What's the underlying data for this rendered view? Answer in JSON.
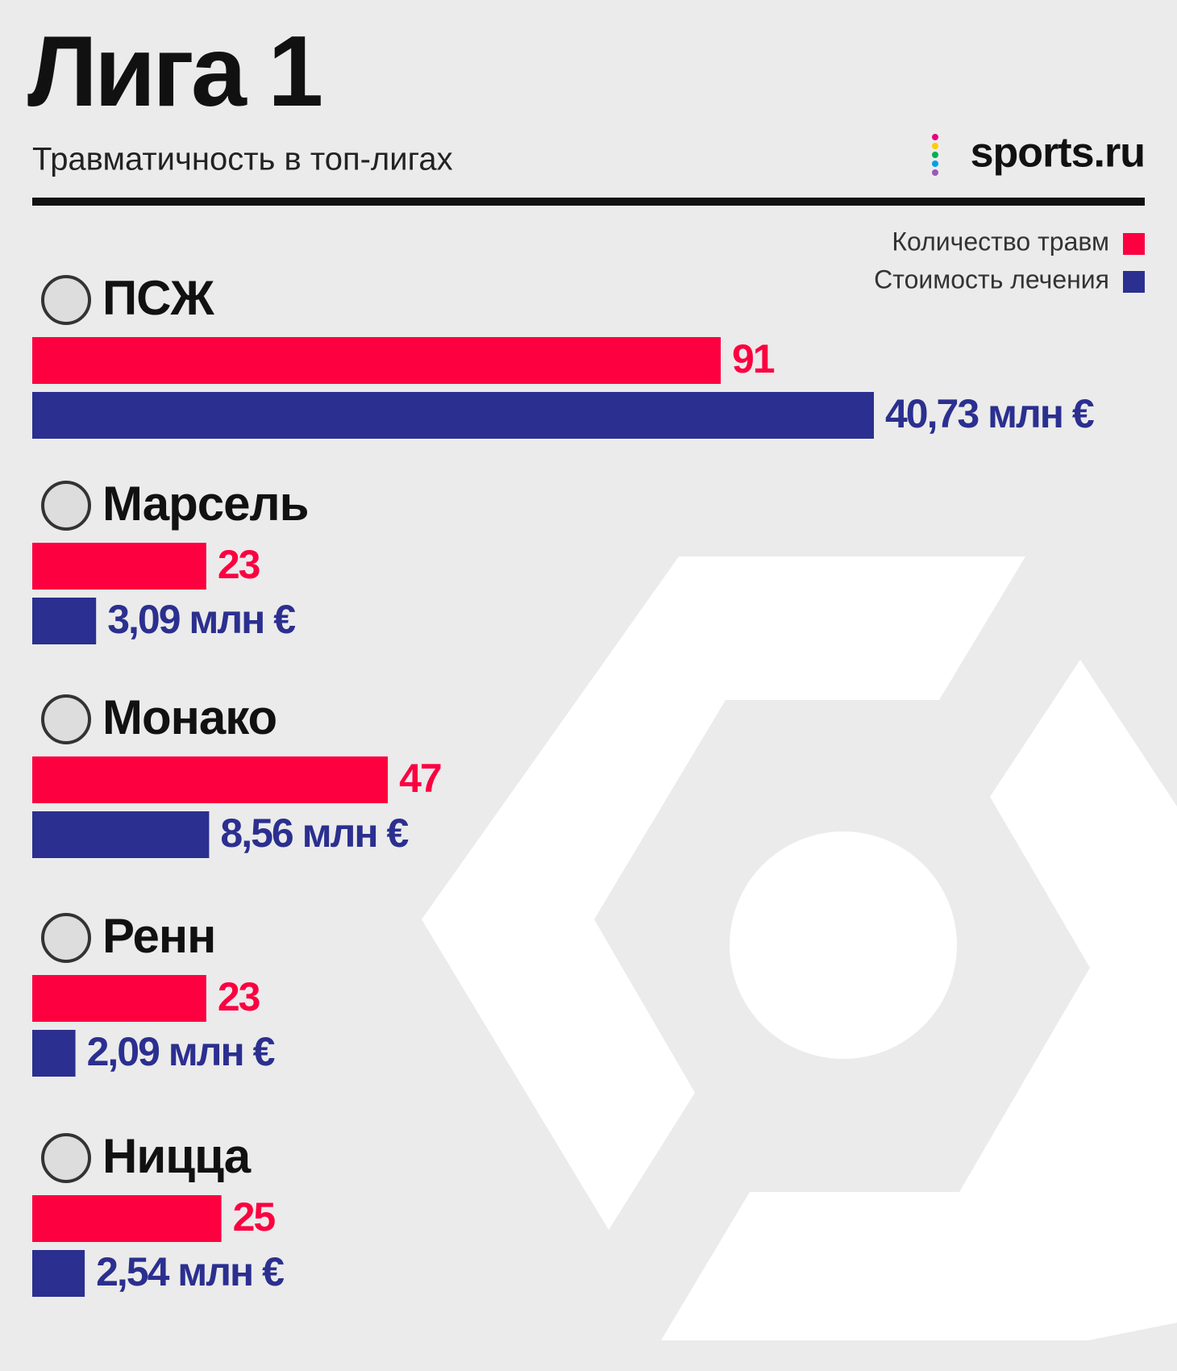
{
  "chart_data": {
    "type": "bar",
    "orientation": "horizontal",
    "title": "Лига 1",
    "subtitle": "Травматичность в топ-лигах",
    "source": "sports.ru",
    "categories": [
      "ПСЖ",
      "Марсель",
      "Монако",
      "Ренн",
      "Ницца"
    ],
    "series": [
      {
        "name": "Количество травм",
        "color": "#fc0040",
        "values": [
          91,
          23,
          47,
          23,
          25
        ]
      },
      {
        "name": "Стоимость лечения",
        "color": "#2b2f8f",
        "values": [
          40.73,
          3.09,
          8.56,
          2.09,
          2.54
        ],
        "value_labels": [
          "40,73 млн €",
          "3,09 млн €",
          "8,56 млн €",
          "2,09 млн €",
          "2,54 млн €"
        ]
      }
    ],
    "legend": "top-right"
  }
}
